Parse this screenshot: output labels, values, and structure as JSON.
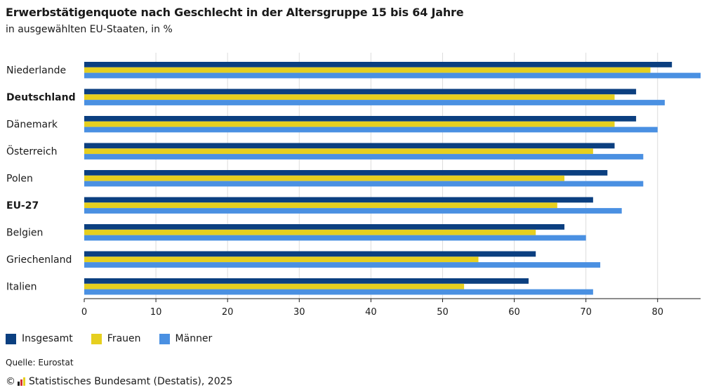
{
  "header": {
    "title": "Erwerbstätigenquote nach Geschlecht in der Altersgruppe 15 bis 64 Jahre",
    "subtitle": "in ausgewählten EU-Staaten, in %"
  },
  "chart_data": {
    "type": "bar",
    "orientation": "horizontal",
    "categories": [
      "Niederlande",
      "Deutschland",
      "Dänemark",
      "Österreich",
      "Polen",
      "EU-27",
      "Belgien",
      "Griechenland",
      "Italien"
    ],
    "bold_categories": [
      "Deutschland",
      "EU-27"
    ],
    "series": [
      {
        "name": "Insgesamt",
        "color": "#0b3f80",
        "values": [
          82,
          77,
          77,
          74,
          73,
          71,
          67,
          63,
          62
        ]
      },
      {
        "name": "Frauen",
        "color": "#e6cf1f",
        "values": [
          79,
          74,
          74,
          71,
          67,
          66,
          63,
          55,
          53
        ]
      },
      {
        "name": "Männer",
        "color": "#4a90e2",
        "values": [
          86,
          81,
          80,
          78,
          78,
          75,
          70,
          72,
          71
        ]
      }
    ],
    "xlim": [
      0,
      86
    ],
    "xticks": [
      0,
      10,
      20,
      30,
      40,
      50,
      60,
      70,
      80
    ],
    "grid": true,
    "legend_position": "bottom-left"
  },
  "source": "Quelle: Eurostat",
  "footer": {
    "copyright_symbol": "©",
    "text": "Statistisches Bundesamt (Destatis), 2025",
    "logo_colors": [
      "#1a1a1a",
      "#d32f2f",
      "#e6cf1f"
    ]
  }
}
